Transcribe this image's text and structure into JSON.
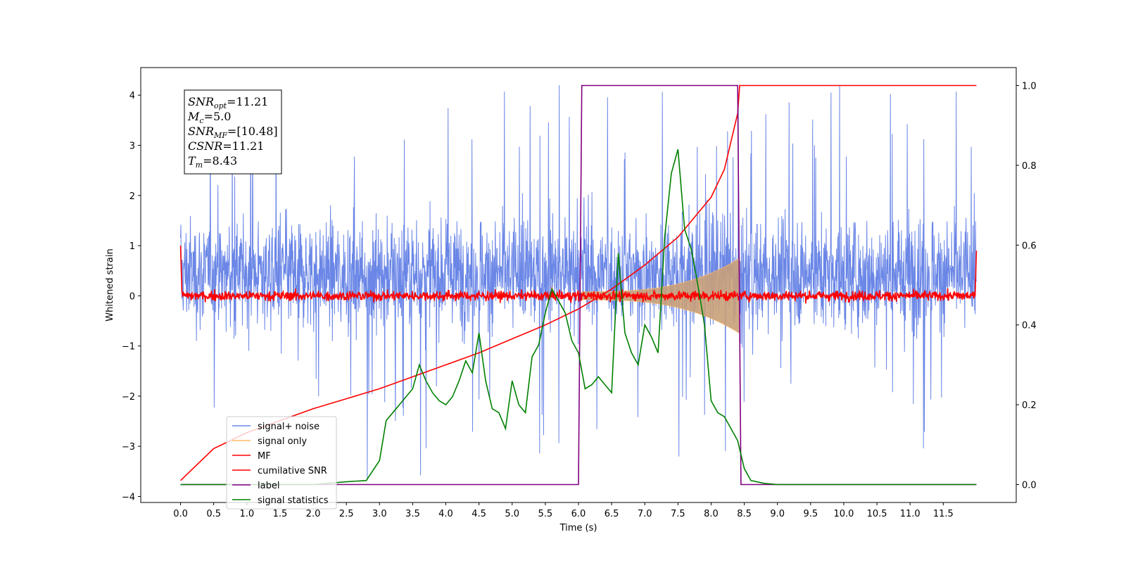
{
  "chart_data": {
    "type": "line",
    "title": "",
    "xlabel": "Time (s)",
    "ylabel": "Whitened strain",
    "xlim": [
      -0.6,
      12.6
    ],
    "ylim": [
      -4.12,
      4.55
    ],
    "y2lim": [
      -0.045,
      1.045
    ],
    "xticks": [
      "0.0",
      "0.5",
      "1.0",
      "1.5",
      "2.0",
      "2.5",
      "3.0",
      "3.5",
      "4.0",
      "4.5",
      "5.0",
      "5.5",
      "6.0",
      "6.5",
      "7.0",
      "7.5",
      "8.0",
      "8.5",
      "9.0",
      "9.5",
      "10.0",
      "10.5",
      "11.0",
      "11.5"
    ],
    "yticks": [
      "4",
      "3",
      "2",
      "1",
      "0",
      "−1",
      "−2",
      "−3",
      "−4"
    ],
    "y2ticks": [
      "1.0",
      "0.8",
      "0.6",
      "0.4",
      "0.2",
      "0.0"
    ],
    "grid": false,
    "legend_position": "lower-left",
    "annotation": [
      {
        "base": "SNR",
        "sub": "opt",
        "value": "=11.21"
      },
      {
        "base": "M",
        "sub": "c",
        "value": "=5.0"
      },
      {
        "base": "SNR",
        "sub": "MF",
        "value": "=[10.48]"
      },
      {
        "base": "CSNR",
        "sub": "",
        "value": "=11.21"
      },
      {
        "base": "T",
        "sub": "m",
        "value": "=8.43"
      }
    ],
    "series": [
      {
        "name": "signal+ noise",
        "color": "#6a86e6",
        "axis": "left",
        "kind": "noise",
        "center": 0.0,
        "typical_amplitude": 2.0,
        "range": [
          -3.7,
          4.2
        ]
      },
      {
        "name": "signal only",
        "color": "#ffbb66",
        "axis": "left",
        "kind": "chirp",
        "start": 6.0,
        "end": 8.43,
        "envelope_start": 0.08,
        "envelope_end": 0.75
      },
      {
        "name": "MF",
        "color": "#ff0000",
        "axis": "left",
        "kind": "noise",
        "center": 0.0,
        "typical_amplitude": 0.12
      },
      {
        "name": "cumilative SNR",
        "color": "#ff0000",
        "axis": "right",
        "x": [
          0.0,
          0.5,
          1.0,
          1.5,
          2.0,
          2.5,
          3.0,
          3.5,
          4.0,
          4.5,
          5.0,
          5.5,
          6.0,
          6.5,
          7.0,
          7.5,
          8.0,
          8.2,
          8.4,
          8.43,
          8.45,
          12.0
        ],
        "y": [
          0.01,
          0.09,
          0.13,
          0.16,
          0.19,
          0.215,
          0.24,
          0.27,
          0.3,
          0.33,
          0.365,
          0.4,
          0.44,
          0.49,
          0.55,
          0.62,
          0.72,
          0.79,
          0.93,
          1.0,
          1.0,
          1.0
        ]
      },
      {
        "name": "label",
        "color": "#800080",
        "axis": "right",
        "x": [
          0.0,
          6.0,
          6.05,
          8.4,
          8.45,
          12.0
        ],
        "y": [
          0.0,
          0.0,
          1.0,
          1.0,
          0.0,
          0.0
        ]
      },
      {
        "name": "signal statistics",
        "color": "#008000",
        "axis": "right",
        "x": [
          0.0,
          0.5,
          1.0,
          1.5,
          2.0,
          2.5,
          2.8,
          3.0,
          3.1,
          3.2,
          3.3,
          3.4,
          3.5,
          3.6,
          3.7,
          3.8,
          3.9,
          4.0,
          4.1,
          4.2,
          4.3,
          4.4,
          4.5,
          4.6,
          4.7,
          4.8,
          4.9,
          5.0,
          5.1,
          5.2,
          5.3,
          5.4,
          5.5,
          5.6,
          5.7,
          5.8,
          5.9,
          6.0,
          6.1,
          6.2,
          6.3,
          6.4,
          6.5,
          6.6,
          6.7,
          6.8,
          6.9,
          7.0,
          7.1,
          7.2,
          7.3,
          7.4,
          7.5,
          7.6,
          7.7,
          7.8,
          7.9,
          8.0,
          8.1,
          8.2,
          8.3,
          8.4,
          8.5,
          8.6,
          8.8,
          9.0,
          10.0,
          11.0,
          12.0
        ],
        "y": [
          0.0,
          0.0,
          0.0,
          0.0,
          0.0,
          0.007,
          0.01,
          0.06,
          0.16,
          0.18,
          0.2,
          0.22,
          0.24,
          0.3,
          0.26,
          0.23,
          0.21,
          0.2,
          0.22,
          0.26,
          0.31,
          0.28,
          0.38,
          0.26,
          0.19,
          0.18,
          0.14,
          0.26,
          0.2,
          0.18,
          0.32,
          0.35,
          0.43,
          0.49,
          0.46,
          0.43,
          0.36,
          0.33,
          0.24,
          0.25,
          0.27,
          0.25,
          0.23,
          0.58,
          0.38,
          0.33,
          0.3,
          0.4,
          0.37,
          0.33,
          0.62,
          0.78,
          0.84,
          0.64,
          0.59,
          0.5,
          0.4,
          0.21,
          0.18,
          0.17,
          0.14,
          0.11,
          0.04,
          0.01,
          0.003,
          0.0,
          0.0,
          0.0,
          0.0
        ]
      }
    ]
  }
}
